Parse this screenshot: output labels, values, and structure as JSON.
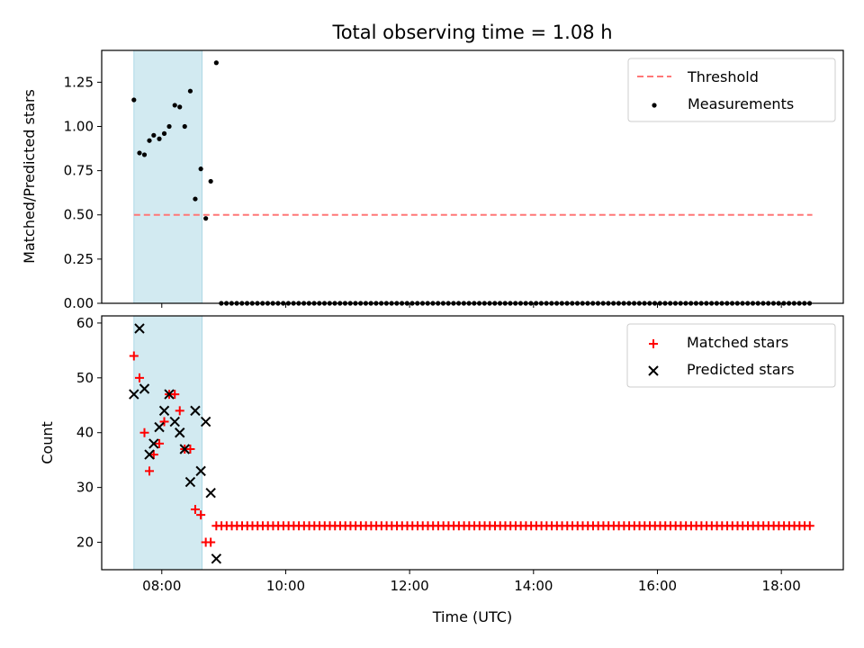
{
  "chart_data": {
    "title": "Total observing time = 1.08 h",
    "xlabel": "Time (UTC)",
    "x_ticks": [
      "08:00",
      "10:00",
      "12:00",
      "14:00",
      "16:00",
      "18:00"
    ],
    "x_ticks_hours": [
      8,
      10,
      12,
      14,
      16,
      18
    ],
    "xlim_hours": [
      7.03,
      19.0
    ],
    "observing_window_hours": [
      7.55,
      8.65
    ],
    "observing_window_color": "#add8e6",
    "panels": [
      {
        "type": "scatter",
        "ylabel": "Matched/Predicted stars",
        "ylim": [
          0,
          1.43
        ],
        "y_ticks": [
          "0.00",
          "0.25",
          "0.50",
          "0.75",
          "1.00",
          "1.25"
        ],
        "y_tick_values": [
          0,
          0.25,
          0.5,
          0.75,
          1.0,
          1.25
        ],
        "legend_position": "top-right",
        "threshold": {
          "name": "Threshold",
          "value": 0.5,
          "x_from": 7.55,
          "x_to": 18.5,
          "color": "#ff7777"
        },
        "series": [
          {
            "name": "Measurements",
            "color": "#000000",
            "marker": "dot",
            "points": [
              [
                7.55,
                1.15
              ],
              [
                7.64,
                0.85
              ],
              [
                7.72,
                0.84
              ],
              [
                7.8,
                0.92
              ],
              [
                7.87,
                0.95
              ],
              [
                7.96,
                0.93
              ],
              [
                8.04,
                0.96
              ],
              [
                8.12,
                1.0
              ],
              [
                8.21,
                1.12
              ],
              [
                8.29,
                1.11
              ],
              [
                8.37,
                1.0
              ],
              [
                8.46,
                1.2
              ],
              [
                8.54,
                0.59
              ],
              [
                8.63,
                0.76
              ],
              [
                8.71,
                0.48
              ],
              [
                8.79,
                0.69
              ],
              [
                8.88,
                1.36
              ]
            ],
            "zero_points_from": 8.96,
            "zero_points_to": 18.5,
            "zero_points_step": 0.0833
          }
        ]
      },
      {
        "type": "scatter",
        "ylabel": "Count",
        "ylim": [
          15,
          61.3
        ],
        "y_ticks": [
          "20",
          "30",
          "40",
          "50",
          "60"
        ],
        "y_tick_values": [
          20,
          30,
          40,
          50,
          60
        ],
        "legend_position": "top-right",
        "series": [
          {
            "name": "Matched stars",
            "color": "#ff0000",
            "marker": "plus",
            "points": [
              [
                7.55,
                54
              ],
              [
                7.64,
                50
              ],
              [
                7.72,
                40
              ],
              [
                7.8,
                33
              ],
              [
                7.87,
                36
              ],
              [
                7.96,
                38
              ],
              [
                8.04,
                42
              ],
              [
                8.12,
                47
              ],
              [
                8.21,
                47
              ],
              [
                8.29,
                44
              ],
              [
                8.37,
                37
              ],
              [
                8.46,
                37
              ],
              [
                8.54,
                26
              ],
              [
                8.63,
                25
              ],
              [
                8.71,
                20
              ],
              [
                8.79,
                20
              ]
            ],
            "constant_from": 8.88,
            "constant_to": 18.5,
            "constant_step": 0.0833,
            "constant_value": 23
          },
          {
            "name": "Predicted stars",
            "color": "#000000",
            "marker": "x",
            "points": [
              [
                7.55,
                47
              ],
              [
                7.64,
                59
              ],
              [
                7.72,
                48
              ],
              [
                7.8,
                36
              ],
              [
                7.87,
                38
              ],
              [
                7.96,
                41
              ],
              [
                8.04,
                44
              ],
              [
                8.12,
                47
              ],
              [
                8.21,
                42
              ],
              [
                8.29,
                40
              ],
              [
                8.37,
                37
              ],
              [
                8.46,
                31
              ],
              [
                8.54,
                44
              ],
              [
                8.63,
                33
              ],
              [
                8.71,
                42
              ],
              [
                8.79,
                29
              ],
              [
                8.88,
                17
              ]
            ]
          }
        ]
      }
    ]
  }
}
